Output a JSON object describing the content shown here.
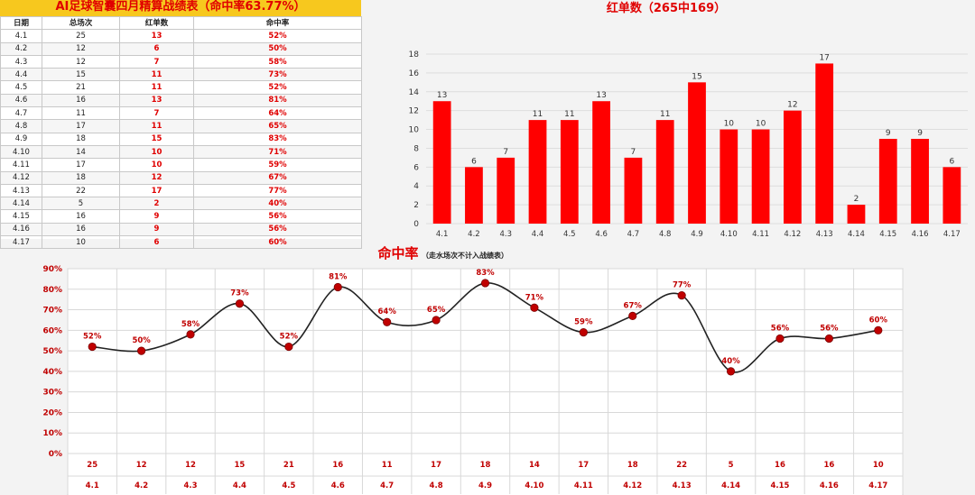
{
  "table": {
    "title": "AI足球智囊四月精算战绩表（命中率63.77%）",
    "headers": [
      "日期",
      "总场次",
      "红单数",
      "命中率"
    ],
    "rows": [
      [
        "4.1",
        "25",
        "13",
        "52%"
      ],
      [
        "4.2",
        "12",
        "6",
        "50%"
      ],
      [
        "4.3",
        "12",
        "7",
        "58%"
      ],
      [
        "4.4",
        "15",
        "11",
        "73%"
      ],
      [
        "4.5",
        "21",
        "11",
        "52%"
      ],
      [
        "4.6",
        "16",
        "13",
        "81%"
      ],
      [
        "4.7",
        "11",
        "7",
        "64%"
      ],
      [
        "4.8",
        "17",
        "11",
        "65%"
      ],
      [
        "4.9",
        "18",
        "15",
        "83%"
      ],
      [
        "4.10",
        "14",
        "10",
        "71%"
      ],
      [
        "4.11",
        "17",
        "10",
        "59%"
      ],
      [
        "4.12",
        "18",
        "12",
        "67%"
      ],
      [
        "4.13",
        "22",
        "17",
        "77%"
      ],
      [
        "4.14",
        "5",
        "2",
        "40%"
      ],
      [
        "4.15",
        "16",
        "9",
        "56%"
      ],
      [
        "4.16",
        "16",
        "9",
        "56%"
      ],
      [
        "4.17",
        "10",
        "6",
        "60%"
      ]
    ]
  },
  "chart_data": [
    {
      "type": "bar",
      "title": "红单数（265中169）",
      "categories": [
        "4.1",
        "4.2",
        "4.3",
        "4.4",
        "4.5",
        "4.6",
        "4.7",
        "4.8",
        "4.9",
        "4.10",
        "4.11",
        "4.12",
        "4.13",
        "4.14",
        "4.15",
        "4.16",
        "4.17"
      ],
      "values": [
        13,
        6,
        7,
        11,
        11,
        13,
        7,
        11,
        15,
        10,
        10,
        12,
        17,
        2,
        9,
        9,
        6
      ],
      "ylim": [
        0,
        18
      ],
      "yticks": [
        0,
        2,
        4,
        6,
        8,
        10,
        12,
        14,
        16,
        18
      ],
      "grid": true,
      "color": "#ff0000"
    },
    {
      "type": "line",
      "title": "命中率",
      "subtitle": "（走水场次不计入战绩表）",
      "categories": [
        "4.1",
        "4.2",
        "4.3",
        "4.4",
        "4.5",
        "4.6",
        "4.7",
        "4.8",
        "4.9",
        "4.10",
        "4.11",
        "4.12",
        "4.13",
        "4.14",
        "4.15",
        "4.16",
        "4.17"
      ],
      "counts": [
        "25",
        "12",
        "12",
        "15",
        "21",
        "16",
        "11",
        "17",
        "18",
        "14",
        "17",
        "18",
        "22",
        "5",
        "16",
        "16",
        "10"
      ],
      "values": [
        52,
        50,
        58,
        73,
        52,
        81,
        64,
        65,
        83,
        71,
        59,
        67,
        77,
        40,
        56,
        56,
        60
      ],
      "labels": [
        "52%",
        "50%",
        "58%",
        "73%",
        "52%",
        "81%",
        "64%",
        "65%",
        "83%",
        "71%",
        "59%",
        "67%",
        "77%",
        "40%",
        "56%",
        "56%",
        "60%"
      ],
      "ylim": [
        0,
        90
      ],
      "yticks": [
        "0%",
        "10%",
        "20%",
        "30%",
        "40%",
        "50%",
        "60%",
        "70%",
        "80%",
        "90%"
      ],
      "grid": true,
      "line_color": "#222222",
      "marker_color": "#c00000",
      "label_color": "#c00000"
    }
  ]
}
